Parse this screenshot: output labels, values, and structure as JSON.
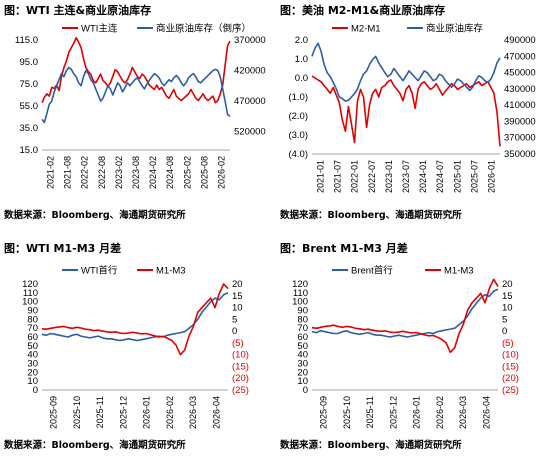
{
  "panels": [
    {
      "title": "图：WTI 主连&商业原油库存",
      "source": "数据来源：Bloomberg、海通期货研究所",
      "chart_data": {
        "type": "line",
        "x_ticks": [
          "2021-02",
          "2021-08",
          "2022-02",
          "2022-08",
          "2023-02",
          "2023-08",
          "2024-02",
          "2024-08",
          "2025-02",
          "2025-08",
          "2026-02"
        ],
        "left_axis": {
          "ticks": [
            "15.0",
            "35.0",
            "55.0",
            "75.0",
            "95.0",
            "115.0"
          ],
          "ylim": [
            15,
            115
          ]
        },
        "right_axis": {
          "ticks": [
            "370000",
            "420000",
            "470000",
            "520000"
          ],
          "ylim": [
            370000,
            550000
          ],
          "inverted": true
        },
        "legend_position": "top",
        "series": [
          {
            "name": "WTI主连",
            "color": "#e00000",
            "axis": "left",
            "values": [
              58,
              63,
              66,
              64,
              72,
              71,
              74,
              69,
              82,
              90,
              96,
              104,
              108,
              112,
              117,
              113,
              108,
              98,
              90,
              86,
              84,
              78,
              76,
              80,
              84,
              78,
              76,
              73,
              76,
              82,
              88,
              86,
              82,
              78,
              76,
              79,
              84,
              90,
              86,
              82,
              80,
              84,
              82,
              78,
              74,
              72,
              70,
              74,
              70,
              72,
              68,
              64,
              62,
              66,
              70,
              64,
              62,
              60,
              62,
              64,
              66,
              70,
              66,
              62,
              60,
              63,
              66,
              62,
              60,
              62,
              64,
              58,
              60,
              66,
              74,
              92,
              110,
              114
            ]
          },
          {
            "name": "商业原油库存（倒序）",
            "color": "#2e5ca8",
            "axis": "right",
            "values": [
              500000,
              505000,
              490000,
              475000,
              470000,
              455000,
              445000,
              435000,
              425000,
              430000,
              420000,
              415000,
              418000,
              425000,
              430000,
              440000,
              445000,
              430000,
              420000,
              425000,
              435000,
              440000,
              450000,
              460000,
              470000,
              465000,
              455000,
              445000,
              450000,
              460000,
              450000,
              440000,
              445000,
              455000,
              448000,
              440000,
              445000,
              440000,
              435000,
              432000,
              438000,
              445000,
              450000,
              442000,
              436000,
              430000,
              425000,
              428000,
              432000,
              440000,
              445000,
              440000,
              435000,
              438000,
              432000,
              428000,
              432000,
              440000,
              445000,
              440000,
              432000,
              428000,
              425000,
              430000,
              438000,
              440000,
              436000,
              432000,
              428000,
              424000,
              420000,
              418000,
              420000,
              430000,
              450000,
              470000,
              492000,
              495000
            ]
          }
        ]
      }
    },
    {
      "title": "图：美油 M2-M1&商业原油库存",
      "source": "数据来源：Bloomberg、海通期货研究所",
      "chart_data": {
        "type": "line",
        "x_ticks": [
          "2021-01",
          "2021-07",
          "2022-01",
          "2022-07",
          "2023-01",
          "2023-07",
          "2024-01",
          "2024-07",
          "2025-01",
          "2025-07",
          "2026-01"
        ],
        "left_axis": {
          "ticks": [
            "(4.0)",
            "(3.0)",
            "(2.0)",
            "(1.0)",
            "0.0",
            "1.0",
            "2.0"
          ],
          "ylim": [
            -4,
            2
          ]
        },
        "right_axis": {
          "ticks": [
            "350000",
            "370000",
            "390000",
            "410000",
            "430000",
            "450000",
            "470000",
            "490000"
          ],
          "ylim": [
            350000,
            490000
          ]
        },
        "legend_position": "top",
        "series": [
          {
            "name": "M2-M1",
            "color": "#e00000",
            "axis": "left",
            "values": [
              0.1,
              0.0,
              -0.1,
              -0.2,
              -0.4,
              -0.6,
              -0.8,
              -0.5,
              -0.9,
              -1.3,
              -2.2,
              -2.8,
              -1.5,
              -2.4,
              -3.4,
              -1.2,
              -0.6,
              -1.0,
              -2.6,
              -1.4,
              -0.8,
              -0.6,
              -1.0,
              -0.5,
              -0.4,
              -0.2,
              -0.1,
              -0.4,
              -0.6,
              -0.8,
              -1.2,
              -0.6,
              -0.4,
              -0.8,
              -1.6,
              -0.6,
              -0.3,
              -0.2,
              -0.4,
              -0.6,
              -0.5,
              -0.3,
              -0.6,
              -0.9,
              -0.7,
              -0.5,
              -0.3,
              -0.4,
              -0.6,
              -0.5,
              -0.4,
              -0.3,
              -0.5,
              -0.4,
              -0.3,
              -0.2,
              -0.4,
              -0.3,
              -0.2,
              -0.5,
              -0.8,
              -1.8,
              -3.6
            ]
          },
          {
            "name": "商业原油库存",
            "color": "#2e5ca8",
            "axis": "right",
            "values": [
              470000,
              480000,
              486000,
              476000,
              460000,
              450000,
              445000,
              438000,
              430000,
              420000,
              418000,
              415000,
              416000,
              420000,
              424000,
              430000,
              440000,
              448000,
              452000,
              460000,
              466000,
              470000,
              462000,
              456000,
              450000,
              445000,
              448000,
              455000,
              450000,
              445000,
              440000,
              446000,
              452000,
              448000,
              444000,
              440000,
              446000,
              452000,
              450000,
              445000,
              440000,
              442000,
              448000,
              446000,
              440000,
              436000,
              432000,
              436000,
              442000,
              440000,
              436000,
              432000,
              428000,
              432000,
              440000,
              446000,
              444000,
              440000,
              438000,
              442000,
              450000,
              462000,
              468000
            ]
          }
        ]
      }
    },
    {
      "title": "图：WTI M1-M3 月差",
      "source": "数据来源：Bloomberg、海通期货研究所",
      "chart_data": {
        "type": "line",
        "x_ticks": [
          "2025-09",
          "2025-10",
          "2025-11",
          "2025-12",
          "2026-01",
          "2026-02",
          "2026-03",
          "2026-04"
        ],
        "left_axis": {
          "ticks": [
            "0",
            "10",
            "20",
            "30",
            "40",
            "50",
            "60",
            "70",
            "80",
            "90",
            "100",
            "110",
            "120"
          ],
          "ylim": [
            0,
            120
          ]
        },
        "right_axis": {
          "ticks": [
            "(25)",
            "(20)",
            "(15)",
            "(10)",
            "(5)",
            "0",
            "5",
            "10",
            "15",
            "20"
          ],
          "ylim": [
            -25,
            20
          ]
        },
        "legend_position": "top",
        "series": [
          {
            "name": "WTI首行",
            "color": "#2e5ca8",
            "axis": "left",
            "values": [
              63,
              62,
              64,
              63,
              62,
              61,
              60,
              62,
              63,
              61,
              60,
              59,
              60,
              61,
              59,
              58,
              58,
              57,
              56,
              57,
              58,
              57,
              56,
              57,
              58,
              59,
              60,
              61,
              60,
              62,
              63,
              64,
              65,
              66,
              70,
              74,
              80,
              88,
              94,
              100,
              104,
              102,
              108,
              110
            ]
          },
          {
            "name": "M1-M3",
            "color": "#e00000",
            "axis": "right",
            "values": [
              1.0,
              0.8,
              1.2,
              1.5,
              1.8,
              2.0,
              1.5,
              1.2,
              1.6,
              1.3,
              0.8,
              0.6,
              0.2,
              0.4,
              0.0,
              -0.3,
              -0.5,
              -0.3,
              -0.8,
              -1.0,
              -0.8,
              -0.5,
              -0.8,
              -1.2,
              -1.0,
              -1.5,
              -2.0,
              -2.5,
              -2.2,
              -3.0,
              -4.0,
              -6.0,
              -10.0,
              -8.0,
              -2.0,
              2.0,
              8.0,
              10.0,
              12.0,
              14.0,
              10.0,
              16.0,
              20.0,
              18.0
            ]
          }
        ]
      }
    },
    {
      "title": "图：Brent M1-M3 月差",
      "source": "数据来源：Bloomberg、海通期货研究所",
      "chart_data": {
        "type": "line",
        "x_ticks": [
          "2025-09",
          "2025-10",
          "2025-11",
          "2025-12",
          "2026-01",
          "2026-02",
          "2026-03",
          "2026-04"
        ],
        "left_axis": {
          "ticks": [
            "0",
            "10",
            "20",
            "30",
            "40",
            "50",
            "60",
            "70",
            "80",
            "90",
            "100",
            "110",
            "120"
          ],
          "ylim": [
            0,
            120
          ]
        },
        "right_axis": {
          "ticks": [
            "(25)",
            "(20)",
            "(15)",
            "(10)",
            "(5)",
            "0",
            "5",
            "10",
            "15",
            "20"
          ],
          "ylim": [
            -25,
            20
          ]
        },
        "legend_position": "top",
        "series": [
          {
            "name": "Brent首行",
            "color": "#2e5ca8",
            "axis": "left",
            "values": [
              66,
              65,
              67,
              66,
              65,
              64,
              64,
              66,
              67,
              65,
              64,
              63,
              64,
              65,
              63,
              62,
              62,
              61,
              60,
              61,
              62,
              61,
              60,
              61,
              62,
              63,
              64,
              65,
              64,
              66,
              67,
              68,
              69,
              70,
              74,
              78,
              84,
              92,
              98,
              104,
              108,
              106,
              112,
              114
            ]
          },
          {
            "name": "M1-M3",
            "color": "#e00000",
            "axis": "right",
            "values": [
              1.5,
              1.2,
              1.6,
              2.0,
              2.2,
              2.5,
              2.0,
              1.6,
              2.0,
              1.8,
              1.2,
              1.0,
              0.6,
              0.8,
              0.4,
              0.1,
              -0.1,
              0.1,
              -0.4,
              -0.6,
              -0.4,
              -0.1,
              -0.4,
              -0.8,
              -0.6,
              -1.0,
              -1.6,
              -2.0,
              -1.8,
              -2.6,
              -3.5,
              -5.0,
              -9.0,
              -7.0,
              -1.0,
              3.0,
              9.0,
              12.0,
              14.0,
              16.0,
              12.0,
              18.0,
              22.0,
              19.0
            ]
          }
        ]
      }
    }
  ]
}
